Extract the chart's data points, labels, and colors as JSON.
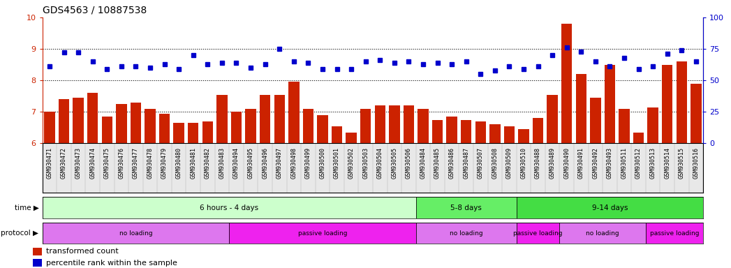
{
  "title": "GDS4563 / 10887538",
  "categories": [
    "GSM930471",
    "GSM930472",
    "GSM930473",
    "GSM930474",
    "GSM930475",
    "GSM930476",
    "GSM930477",
    "GSM930478",
    "GSM930479",
    "GSM930480",
    "GSM930481",
    "GSM930482",
    "GSM930483",
    "GSM930494",
    "GSM930495",
    "GSM930496",
    "GSM930497",
    "GSM930498",
    "GSM930499",
    "GSM930500",
    "GSM930501",
    "GSM930502",
    "GSM930503",
    "GSM930504",
    "GSM930505",
    "GSM930506",
    "GSM930484",
    "GSM930485",
    "GSM930486",
    "GSM930487",
    "GSM930507",
    "GSM930508",
    "GSM930509",
    "GSM930510",
    "GSM930488",
    "GSM930489",
    "GSM930490",
    "GSM930491",
    "GSM930492",
    "GSM930493",
    "GSM930511",
    "GSM930512",
    "GSM930513",
    "GSM930514",
    "GSM930515",
    "GSM930516"
  ],
  "bar_values": [
    7.0,
    7.4,
    7.45,
    7.6,
    6.85,
    7.25,
    7.3,
    7.1,
    6.95,
    6.65,
    6.65,
    6.7,
    7.55,
    7.0,
    7.1,
    7.55,
    7.55,
    7.95,
    7.1,
    6.9,
    6.55,
    6.35,
    7.1,
    7.2,
    7.2,
    7.2,
    7.1,
    6.75,
    6.85,
    6.75,
    6.7,
    6.6,
    6.55,
    6.45,
    6.8,
    7.55,
    9.8,
    8.2,
    7.45,
    8.5,
    7.1,
    6.35,
    7.15,
    8.5,
    8.6,
    7.9
  ],
  "blue_values": [
    61,
    72,
    72,
    65,
    59,
    61,
    61,
    60,
    63,
    59,
    70,
    63,
    64,
    64,
    60,
    63,
    75,
    65,
    64,
    59,
    59,
    59,
    65,
    66,
    64,
    65,
    63,
    64,
    63,
    65,
    55,
    58,
    61,
    59,
    61,
    70,
    76,
    73,
    65,
    61,
    68,
    59,
    61,
    71,
    74,
    65
  ],
  "ylim_left": [
    6,
    10
  ],
  "ylim_right": [
    0,
    100
  ],
  "bar_color": "#cc2200",
  "dot_color": "#0000cc",
  "bg_color": "#ffffff",
  "yticks_left": [
    6,
    7,
    8,
    9,
    10
  ],
  "yticks_right": [
    0,
    25,
    50,
    75,
    100
  ],
  "time_groups": [
    {
      "label": "6 hours - 4 days",
      "start": 0,
      "end": 26,
      "color": "#ccffcc"
    },
    {
      "label": "5-8 days",
      "start": 26,
      "end": 33,
      "color": "#66ee66"
    },
    {
      "label": "9-14 days",
      "start": 33,
      "end": 46,
      "color": "#44dd44"
    }
  ],
  "protocol_groups": [
    {
      "label": "no loading",
      "start": 0,
      "end": 13,
      "color": "#dd77dd"
    },
    {
      "label": "passive loading",
      "start": 13,
      "end": 26,
      "color": "#ee22ee"
    },
    {
      "label": "no loading",
      "start": 26,
      "end": 33,
      "color": "#dd77dd"
    },
    {
      "label": "passive loading",
      "start": 33,
      "end": 36,
      "color": "#ee22ee"
    },
    {
      "label": "no loading",
      "start": 36,
      "end": 42,
      "color": "#dd77dd"
    },
    {
      "label": "passive loading",
      "start": 42,
      "end": 46,
      "color": "#ee22ee"
    }
  ],
  "title_fontsize": 10,
  "tick_fontsize": 6.0,
  "bar_width": 0.75,
  "legend_items": [
    {
      "label": "transformed count",
      "color": "#cc2200"
    },
    {
      "label": "percentile rank within the sample",
      "color": "#0000cc"
    }
  ]
}
